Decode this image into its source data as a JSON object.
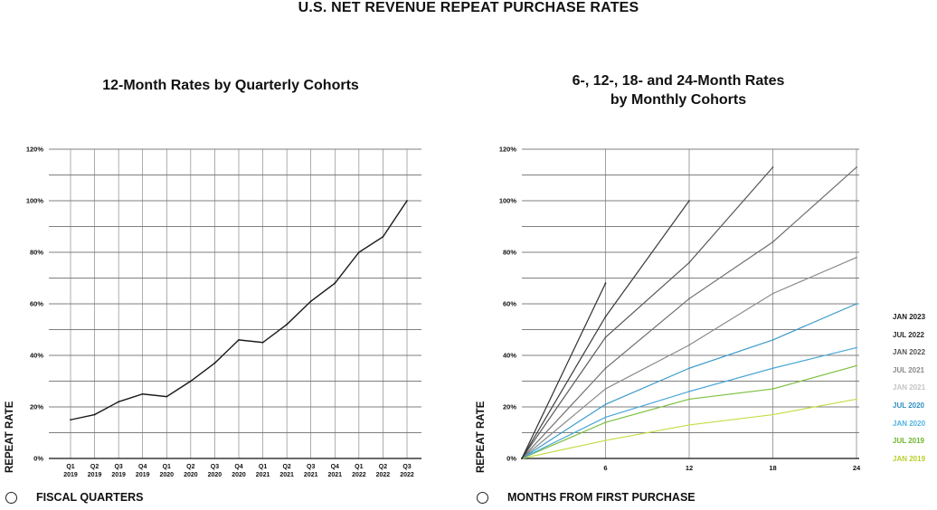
{
  "title": "U.S. NET REVENUE REPEAT PURCHASE RATES",
  "footer": {
    "left": "FISCAL QUARTERS",
    "right": "MONTHS FROM FIRST PURCHASE"
  },
  "chart_data": [
    {
      "type": "line",
      "title": "12-Month Rates by Quarterly Cohorts",
      "xlabel": "",
      "ylabel": "REPEAT RATE",
      "ylim": [
        0,
        120
      ],
      "yticks": [
        0,
        20,
        40,
        60,
        80,
        100,
        120
      ],
      "ytick_labels": [
        "0%",
        "20%",
        "40%",
        "60%",
        "80%",
        "100%",
        "120%"
      ],
      "categories": [
        [
          "Q1",
          "2019"
        ],
        [
          "Q2",
          "2019"
        ],
        [
          "Q3",
          "2019"
        ],
        [
          "Q4",
          "2019"
        ],
        [
          "Q1",
          "2020"
        ],
        [
          "Q2",
          "2020"
        ],
        [
          "Q3",
          "2020"
        ],
        [
          "Q4",
          "2020"
        ],
        [
          "Q1",
          "2021"
        ],
        [
          "Q2",
          "2021"
        ],
        [
          "Q3",
          "2021"
        ],
        [
          "Q4",
          "2021"
        ],
        [
          "Q1",
          "2022"
        ],
        [
          "Q2",
          "2022"
        ],
        [
          "Q3",
          "2022"
        ]
      ],
      "series": [
        {
          "name": "12-Month Rate",
          "color": "#1a1a1a",
          "values": [
            15,
            17,
            22,
            25,
            24,
            30,
            37,
            46,
            45,
            52,
            61,
            68,
            80,
            86,
            100
          ]
        }
      ],
      "grid": true
    },
    {
      "type": "line",
      "title": "6-, 12-, 18- and 24-Month Rates by Monthly Cohorts",
      "xlabel": "",
      "ylabel": "REPEAT RATE",
      "ylim": [
        0,
        120
      ],
      "xlim": [
        0,
        24
      ],
      "xticks": [
        6,
        12,
        18,
        24
      ],
      "yticks": [
        0,
        20,
        40,
        60,
        80,
        100,
        120
      ],
      "ytick_labels": [
        "0%",
        "20%",
        "40%",
        "60%",
        "80%",
        "100%",
        "120%"
      ],
      "series": [
        {
          "name": "JAN 2023",
          "color": "#2e2e2e",
          "x": [
            0,
            6
          ],
          "values": [
            0,
            68
          ]
        },
        {
          "name": "JUL 2022",
          "color": "#3a3a3a",
          "x": [
            0,
            6,
            12
          ],
          "values": [
            0,
            55,
            100
          ]
        },
        {
          "name": "JAN 2022",
          "color": "#5a5a5a",
          "x": [
            0,
            6,
            12,
            18
          ],
          "values": [
            0,
            47,
            76,
            113
          ]
        },
        {
          "name": "JUL 2021",
          "color": "#6e6e6e",
          "x": [
            0,
            6,
            12,
            18,
            24
          ],
          "values": [
            0,
            35,
            62,
            84,
            113
          ]
        },
        {
          "name": "JAN 2021",
          "color": "#8c8c8c",
          "x": [
            0,
            6,
            12,
            18,
            24
          ],
          "values": [
            0,
            27,
            44,
            64,
            78
          ]
        },
        {
          "name": "JUL 2020",
          "color": "#3a9ac9",
          "x": [
            0,
            6,
            12,
            18,
            24
          ],
          "values": [
            0,
            21,
            35,
            46,
            60
          ]
        },
        {
          "name": "JAN 2020",
          "color": "#4aa6d6",
          "x": [
            0,
            6,
            12,
            18,
            24
          ],
          "values": [
            0,
            16,
            26,
            35,
            43
          ]
        },
        {
          "name": "JUL 2019",
          "color": "#7cbf3d",
          "x": [
            0,
            6,
            12,
            18,
            24
          ],
          "values": [
            0,
            14,
            23,
            27,
            36
          ]
        },
        {
          "name": "JAN 2019",
          "color": "#c6dc4a",
          "x": [
            0,
            6,
            12,
            18,
            24
          ],
          "values": [
            0,
            7,
            13,
            17,
            23
          ]
        }
      ],
      "legend_labels": [
        {
          "name": "JAN 2023",
          "color": "#1a1a1a"
        },
        {
          "name": "JUL 2022",
          "color": "#2a2a2a"
        },
        {
          "name": "JAN 2022",
          "color": "#555555"
        },
        {
          "name": "JUL 2021",
          "color": "#8a8a8a"
        },
        {
          "name": "JAN 2021",
          "color": "#c4c4c4"
        },
        {
          "name": "JUL 2020",
          "color": "#2f8fc2"
        },
        {
          "name": "JAN 2020",
          "color": "#4fb3e0"
        },
        {
          "name": "JUL 2019",
          "color": "#6fb52c"
        },
        {
          "name": "JAN 2019",
          "color": "#b9cf2b"
        }
      ],
      "legend": "right",
      "grid": true
    }
  ]
}
